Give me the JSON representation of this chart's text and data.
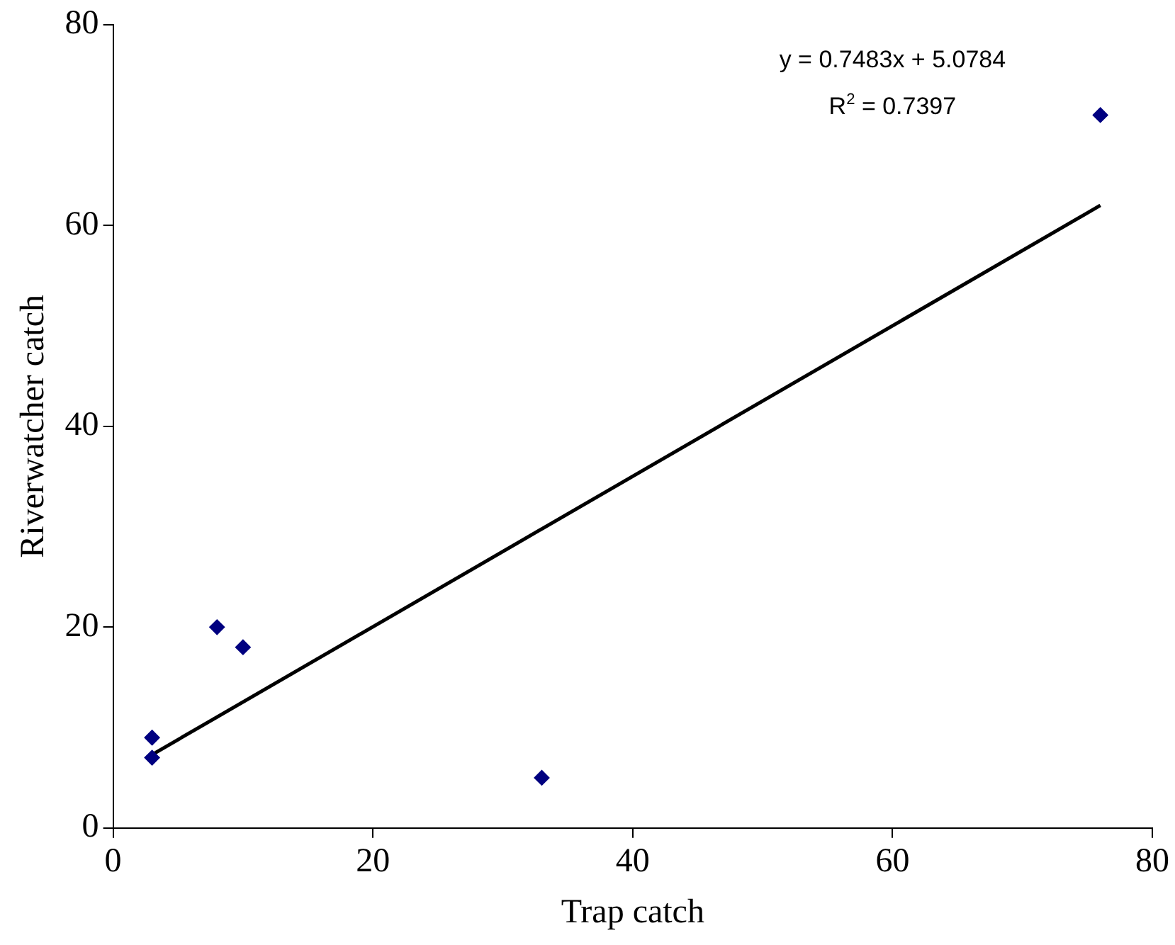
{
  "chart_data": {
    "type": "scatter",
    "xlabel": "Trap catch",
    "ylabel": "Riverwatcher catch",
    "xlim": [
      0,
      80
    ],
    "xticks": [
      0,
      20,
      40,
      60,
      80
    ],
    "ylim": [
      0,
      80
    ],
    "yticks": [
      0,
      20,
      40,
      60,
      80
    ],
    "grid": false,
    "legend": false,
    "marker": "diamond",
    "series": [
      {
        "type": "scatter",
        "color": "#000080",
        "x": [
          3,
          3,
          8,
          10,
          33,
          76
        ],
        "values": [
          9,
          7,
          20,
          18,
          5,
          71
        ]
      },
      {
        "type": "line",
        "color": "#000000",
        "x": [
          3,
          76
        ],
        "values": [
          7.3,
          62
        ],
        "marker": "none",
        "line_style": "solid"
      }
    ],
    "annotations": [
      "y = 0.7483x + 5.0784",
      "R$^{2}$ = 0.7397"
    ]
  }
}
